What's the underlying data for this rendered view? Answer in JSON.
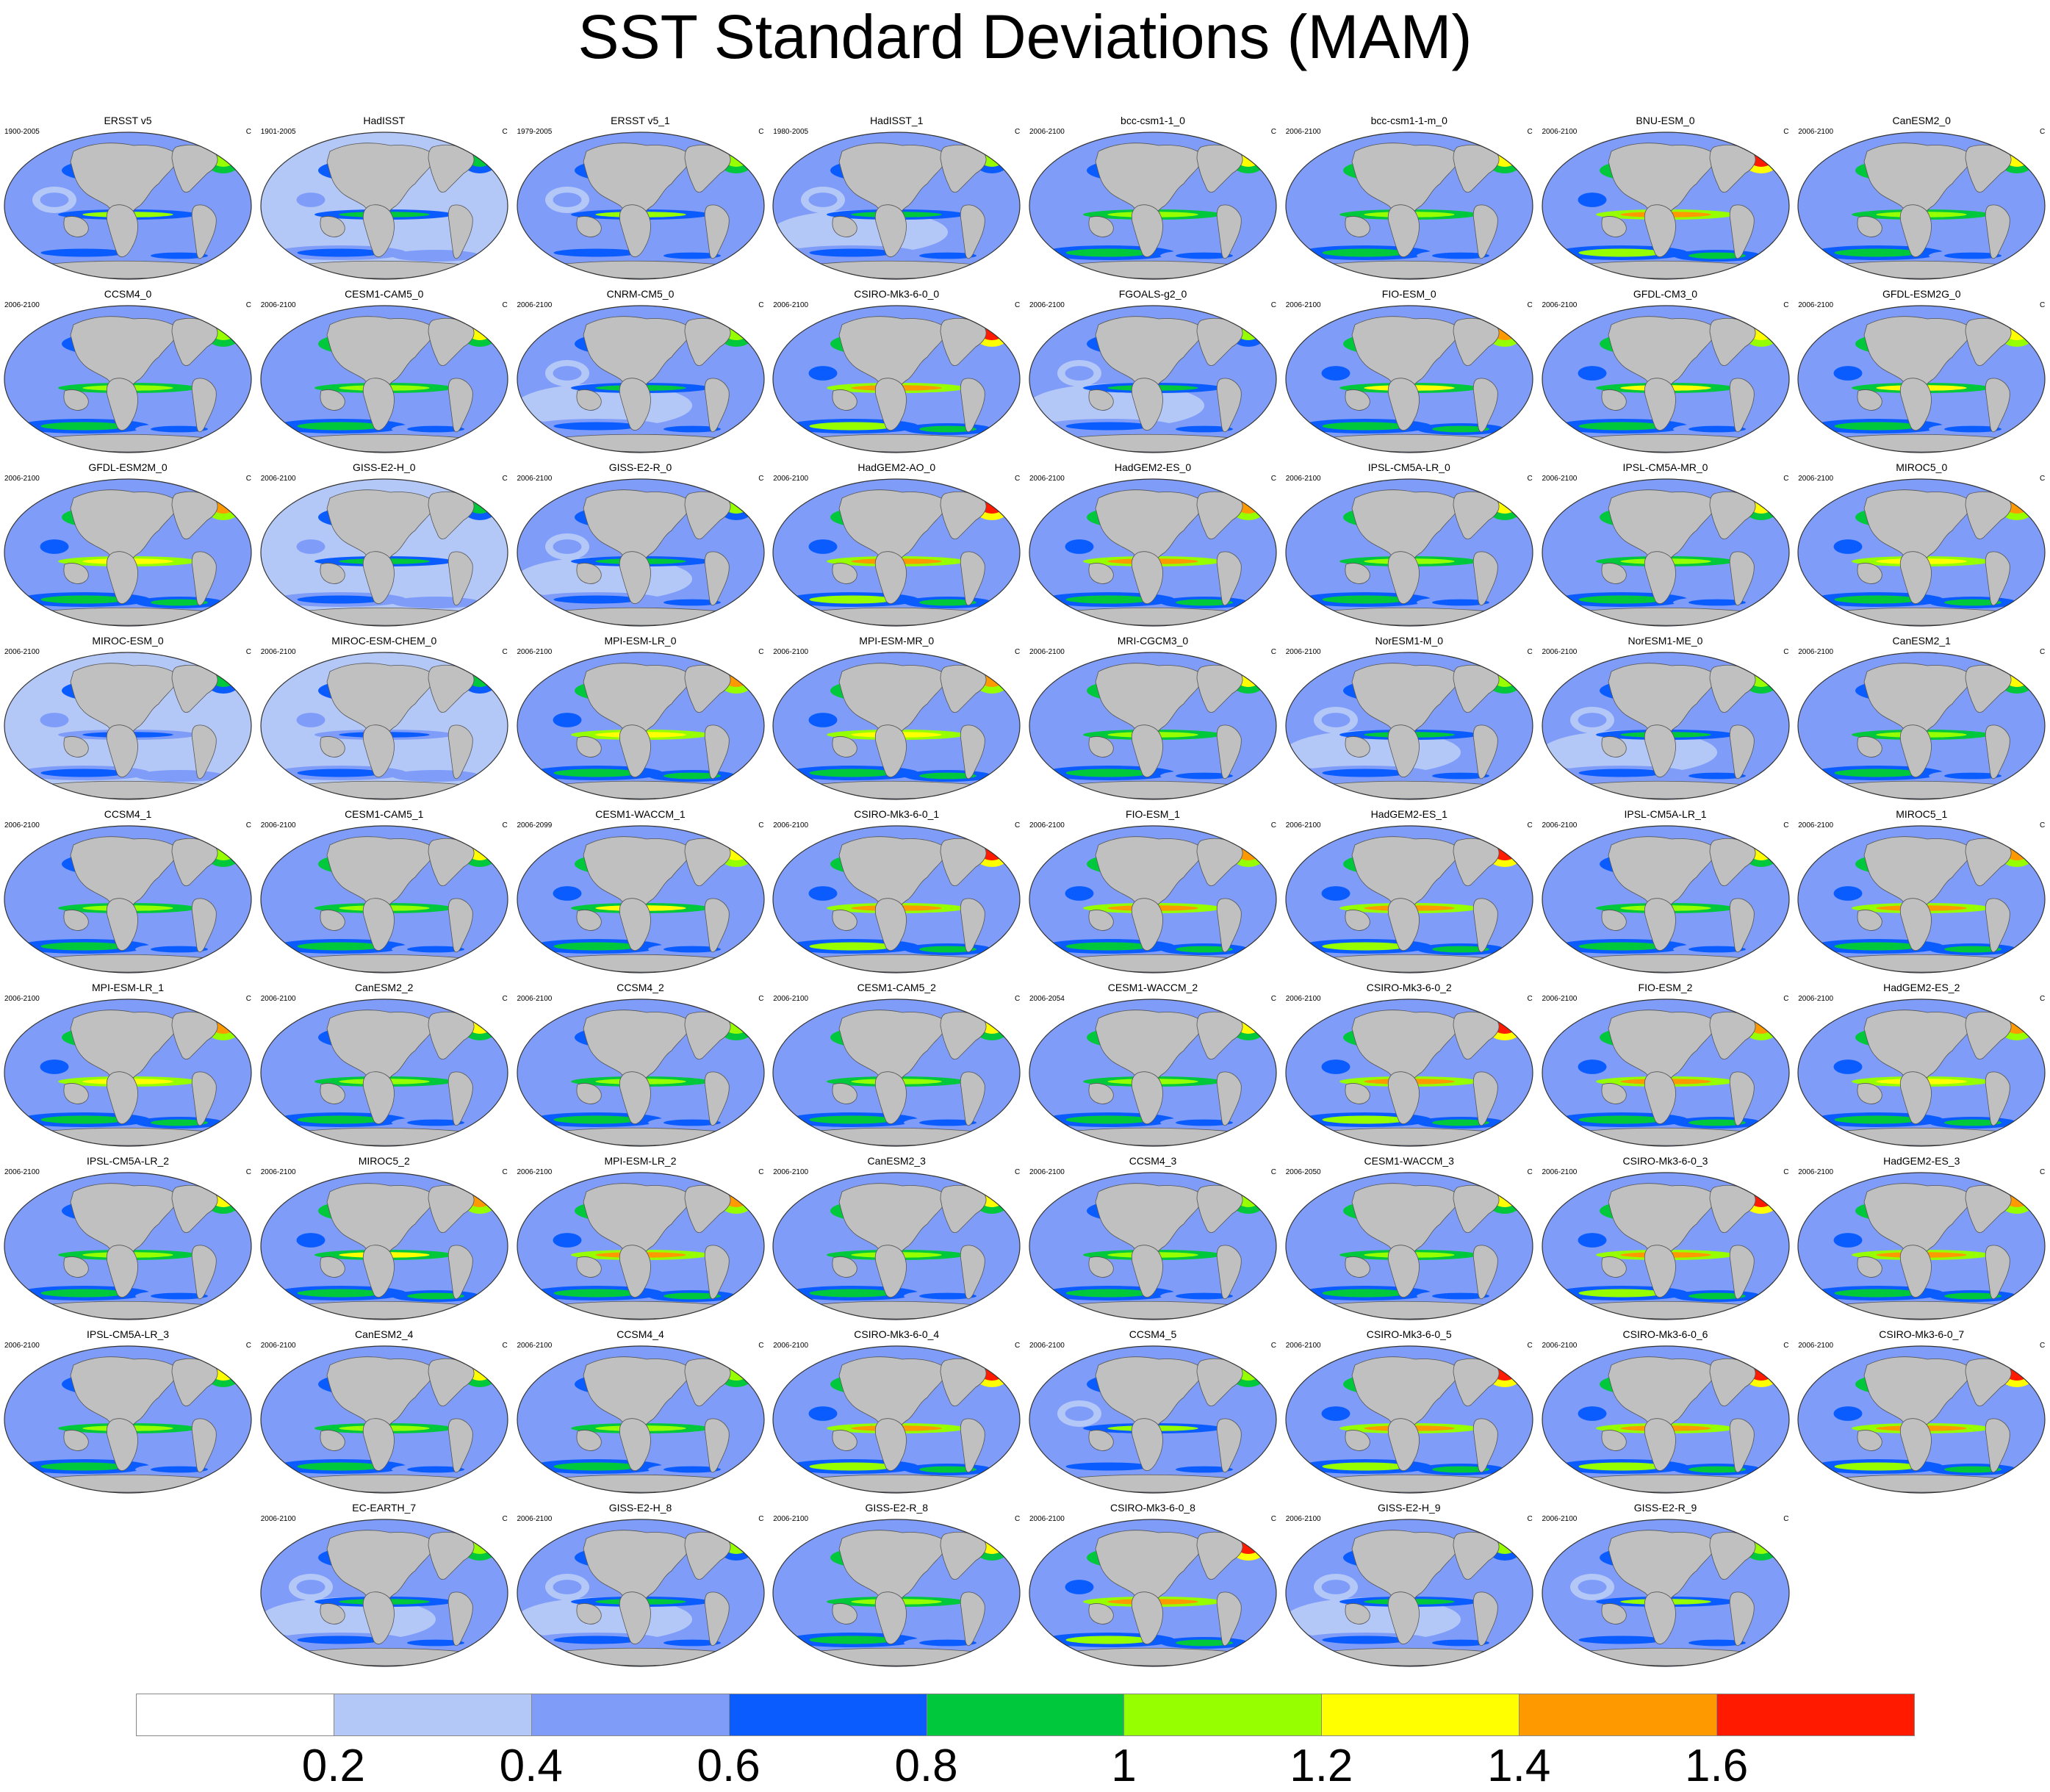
{
  "title": "SST Standard Deviations (MAM)",
  "colors": {
    "land": "#c0c0c0",
    "levels": [
      "#ffffff",
      "#b4c8f8",
      "#7f9cf8",
      "#0a5cff",
      "#00c83c",
      "#96ff00",
      "#ffff00",
      "#ff9900",
      "#ff1a00"
    ]
  },
  "chart_data": {
    "type": "heatmap",
    "title": "SST Standard Deviations (MAM)",
    "units": "C",
    "colorbar": {
      "levels": [
        0.2,
        0.4,
        0.6,
        0.8,
        1,
        1.2,
        1.4,
        1.6
      ],
      "labels": [
        "0.2",
        "0.4",
        "0.6",
        "0.8",
        "1",
        "1.2",
        "1.4",
        "1.6"
      ]
    },
    "panels": [
      {
        "name": "ERSST v5",
        "period": "1900-2005",
        "units": "C",
        "intensity": 0.45
      },
      {
        "name": "HadISST",
        "period": "1901-2005",
        "units": "C",
        "intensity": 0.3
      },
      {
        "name": "ERSST v5_1",
        "period": "1979-2005",
        "units": "C",
        "intensity": 0.45
      },
      {
        "name": "HadISST_1",
        "period": "1980-2005",
        "units": "C",
        "intensity": 0.35
      },
      {
        "name": "bcc-csm1-1_0",
        "period": "2006-2100",
        "units": "C",
        "intensity": 0.55
      },
      {
        "name": "bcc-csm1-1-m_0",
        "period": "2006-2100",
        "units": "C",
        "intensity": 0.6
      },
      {
        "name": "BNU-ESM_0",
        "period": "2006-2100",
        "units": "C",
        "intensity": 0.85
      },
      {
        "name": "CanESM2_0",
        "period": "2006-2100",
        "units": "C",
        "intensity": 0.6
      },
      {
        "name": "CCSM4_0",
        "period": "2006-2100",
        "units": "C",
        "intensity": 0.5
      },
      {
        "name": "CESM1-CAM5_0",
        "period": "2006-2100",
        "units": "C",
        "intensity": 0.6
      },
      {
        "name": "CNRM-CM5_0",
        "period": "2006-2100",
        "units": "C",
        "intensity": 0.4
      },
      {
        "name": "CSIRO-Mk3-6-0_0",
        "period": "2006-2100",
        "units": "C",
        "intensity": 0.9
      },
      {
        "name": "FGOALS-g2_0",
        "period": "2006-2100",
        "units": "C",
        "intensity": 0.35
      },
      {
        "name": "FIO-ESM_0",
        "period": "2006-2100",
        "units": "C",
        "intensity": 0.7
      },
      {
        "name": "GFDL-CM3_0",
        "period": "2006-2100",
        "units": "C",
        "intensity": 0.65
      },
      {
        "name": "GFDL-ESM2G_0",
        "period": "2006-2100",
        "units": "C",
        "intensity": 0.65
      },
      {
        "name": "GFDL-ESM2M_0",
        "period": "2006-2100",
        "units": "C",
        "intensity": 0.75
      },
      {
        "name": "GISS-E2-H_0",
        "period": "2006-2100",
        "units": "C",
        "intensity": 0.3
      },
      {
        "name": "GISS-E2-R_0",
        "period": "2006-2100",
        "units": "C",
        "intensity": 0.35
      },
      {
        "name": "HadGEM2-AO_0",
        "period": "2006-2100",
        "units": "C",
        "intensity": 0.85
      },
      {
        "name": "HadGEM2-ES_0",
        "period": "2006-2100",
        "units": "C",
        "intensity": 0.8
      },
      {
        "name": "IPSL-CM5A-LR_0",
        "period": "2006-2100",
        "units": "C",
        "intensity": 0.6
      },
      {
        "name": "IPSL-CM5A-MR_0",
        "period": "2006-2100",
        "units": "C",
        "intensity": 0.6
      },
      {
        "name": "MIROC5_0",
        "period": "2006-2100",
        "units": "C",
        "intensity": 0.75
      },
      {
        "name": "MIROC-ESM_0",
        "period": "2006-2100",
        "units": "C",
        "intensity": 0.25
      },
      {
        "name": "MIROC-ESM-CHEM_0",
        "period": "2006-2100",
        "units": "C",
        "intensity": 0.25
      },
      {
        "name": "MPI-ESM-LR_0",
        "period": "2006-2100",
        "units": "C",
        "intensity": 0.75
      },
      {
        "name": "MPI-ESM-MR_0",
        "period": "2006-2100",
        "units": "C",
        "intensity": 0.75
      },
      {
        "name": "MRI-CGCM3_0",
        "period": "2006-2100",
        "units": "C",
        "intensity": 0.6
      },
      {
        "name": "NorESM1-M_0",
        "period": "2006-2100",
        "units": "C",
        "intensity": 0.4
      },
      {
        "name": "NorESM1-ME_0",
        "period": "2006-2100",
        "units": "C",
        "intensity": 0.4
      },
      {
        "name": "CanESM2_1",
        "period": "2006-2100",
        "units": "C",
        "intensity": 0.55
      },
      {
        "name": "CCSM4_1",
        "period": "2006-2100",
        "units": "C",
        "intensity": 0.5
      },
      {
        "name": "CESM1-CAM5_1",
        "period": "2006-2100",
        "units": "C",
        "intensity": 0.6
      },
      {
        "name": "CESM1-WACCM_1",
        "period": "2006-2099",
        "units": "C",
        "intensity": 0.65
      },
      {
        "name": "CSIRO-Mk3-6-0_1",
        "period": "2006-2100",
        "units": "C",
        "intensity": 0.85
      },
      {
        "name": "FIO-ESM_1",
        "period": "2006-2100",
        "units": "C",
        "intensity": 0.8
      },
      {
        "name": "HadGEM2-ES_1",
        "period": "2006-2100",
        "units": "C",
        "intensity": 0.85
      },
      {
        "name": "IPSL-CM5A-LR_1",
        "period": "2006-2100",
        "units": "C",
        "intensity": 0.55
      },
      {
        "name": "MIROC5_1",
        "period": "2006-2100",
        "units": "C",
        "intensity": 0.8
      },
      {
        "name": "MPI-ESM-LR_1",
        "period": "2006-2100",
        "units": "C",
        "intensity": 0.75
      },
      {
        "name": "CanESM2_2",
        "period": "2006-2100",
        "units": "C",
        "intensity": 0.55
      },
      {
        "name": "CCSM4_2",
        "period": "2006-2100",
        "units": "C",
        "intensity": 0.5
      },
      {
        "name": "CESM1-CAM5_2",
        "period": "2006-2100",
        "units": "C",
        "intensity": 0.6
      },
      {
        "name": "CESM1-WACCM_2",
        "period": "2006-2054",
        "units": "C",
        "intensity": 0.6
      },
      {
        "name": "CSIRO-Mk3-6-0_2",
        "period": "2006-2100",
        "units": "C",
        "intensity": 0.85
      },
      {
        "name": "FIO-ESM_2",
        "period": "2006-2100",
        "units": "C",
        "intensity": 0.8
      },
      {
        "name": "HadGEM2-ES_2",
        "period": "2006-2100",
        "units": "C",
        "intensity": 0.75
      },
      {
        "name": "IPSL-CM5A-LR_2",
        "period": "2006-2100",
        "units": "C",
        "intensity": 0.55
      },
      {
        "name": "MIROC5_2",
        "period": "2006-2100",
        "units": "C",
        "intensity": 0.7
      },
      {
        "name": "MPI-ESM-LR_2",
        "period": "2006-2100",
        "units": "C",
        "intensity": 0.8
      },
      {
        "name": "CanESM2_3",
        "period": "2006-2100",
        "units": "C",
        "intensity": 0.6
      },
      {
        "name": "CCSM4_3",
        "period": "2006-2100",
        "units": "C",
        "intensity": 0.5
      },
      {
        "name": "CESM1-WACCM_3",
        "period": "2006-2050",
        "units": "C",
        "intensity": 0.6
      },
      {
        "name": "CSIRO-Mk3-6-0_3",
        "period": "2006-2100",
        "units": "C",
        "intensity": 0.85
      },
      {
        "name": "HadGEM2-ES_3",
        "period": "2006-2100",
        "units": "C",
        "intensity": 0.8
      },
      {
        "name": "IPSL-CM5A-LR_3",
        "period": "2006-2100",
        "units": "C",
        "intensity": 0.55
      },
      {
        "name": "CanESM2_4",
        "period": "2006-2100",
        "units": "C",
        "intensity": 0.55
      },
      {
        "name": "CCSM4_4",
        "period": "2006-2100",
        "units": "C",
        "intensity": 0.5
      },
      {
        "name": "CSIRO-Mk3-6-0_4",
        "period": "2006-2100",
        "units": "C",
        "intensity": 0.85
      },
      {
        "name": "CCSM4_5",
        "period": "2006-2100",
        "units": "C",
        "intensity": 0.45
      },
      {
        "name": "CSIRO-Mk3-6-0_5",
        "period": "2006-2100",
        "units": "C",
        "intensity": 0.85
      },
      {
        "name": "CSIRO-Mk3-6-0_6",
        "period": "2006-2100",
        "units": "C",
        "intensity": 0.85
      },
      {
        "name": "CSIRO-Mk3-6-0_7",
        "period": "2006-2100",
        "units": "C",
        "intensity": 0.85
      },
      {
        "name": "EC-EARTH_7",
        "period": "2006-2100",
        "units": "C",
        "intensity": 0.4
      },
      {
        "name": "GISS-E2-H_8",
        "period": "2006-2100",
        "units": "C",
        "intensity": 0.35
      },
      {
        "name": "GISS-E2-R_8",
        "period": "2006-2100",
        "units": "C",
        "intensity": 0.6
      },
      {
        "name": "CSIRO-Mk3-6-0_8",
        "period": "2006-2100",
        "units": "C",
        "intensity": 0.85
      },
      {
        "name": "GISS-E2-H_9",
        "period": "2006-2100",
        "units": "C",
        "intensity": 0.35
      },
      {
        "name": "GISS-E2-R_9",
        "period": "2006-2100",
        "units": "C",
        "intensity": 0.45
      }
    ]
  }
}
